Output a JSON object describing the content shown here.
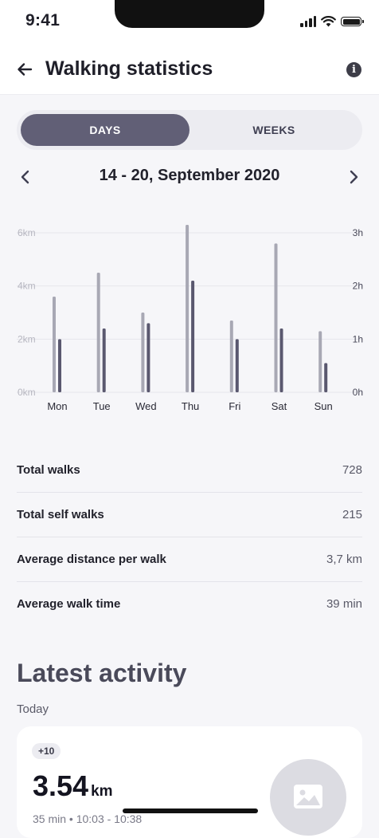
{
  "status_bar": {
    "time": "9:41"
  },
  "header": {
    "title": "Walking statistics",
    "back_icon": "arrow-left-icon",
    "info_icon": "info-icon"
  },
  "tabs": [
    {
      "label": "DAYS",
      "selected": true
    },
    {
      "label": "WEEKS",
      "selected": false
    }
  ],
  "period": {
    "label": "14 - 20, September 2020",
    "prev_icon": "chevron-left-icon",
    "next_icon": "chevron-right-icon"
  },
  "chart_data": {
    "type": "bar",
    "categories": [
      "Mon",
      "Tue",
      "Wed",
      "Thu",
      "Fri",
      "Sat",
      "Sun"
    ],
    "series": [
      {
        "values": [
          3.6,
          4.5,
          3.0,
          6.3,
          2.7,
          5.6,
          2.3
        ],
        "axis": "left",
        "color": "#a8a8b4"
      },
      {
        "values": [
          1.0,
          1.2,
          1.3,
          2.1,
          1.0,
          1.2,
          0.55
        ],
        "axis": "right",
        "color": "#5a586f"
      }
    ],
    "left_axis": {
      "ticks": [
        "0km",
        "2km",
        "4km",
        "6km"
      ],
      "range": [
        0,
        6
      ]
    },
    "right_axis": {
      "ticks": [
        "0h",
        "1h",
        "2h",
        "3h"
      ],
      "range": [
        0,
        3
      ]
    },
    "grid": true
  },
  "stats": [
    {
      "label": "Total walks",
      "value": "728"
    },
    {
      "label": "Total self walks",
      "value": "215"
    },
    {
      "label": "Average distance per walk",
      "value": "3,7 km"
    },
    {
      "label": "Average walk time",
      "value": "39 min"
    }
  ],
  "latest": {
    "title": "Latest activity",
    "group": "Today",
    "card": {
      "badge": "+10",
      "distance": "3.54",
      "unit": "km",
      "meta": "35 min  •  10:03 - 10:38",
      "photo_icon": "image-placeholder-icon"
    }
  }
}
